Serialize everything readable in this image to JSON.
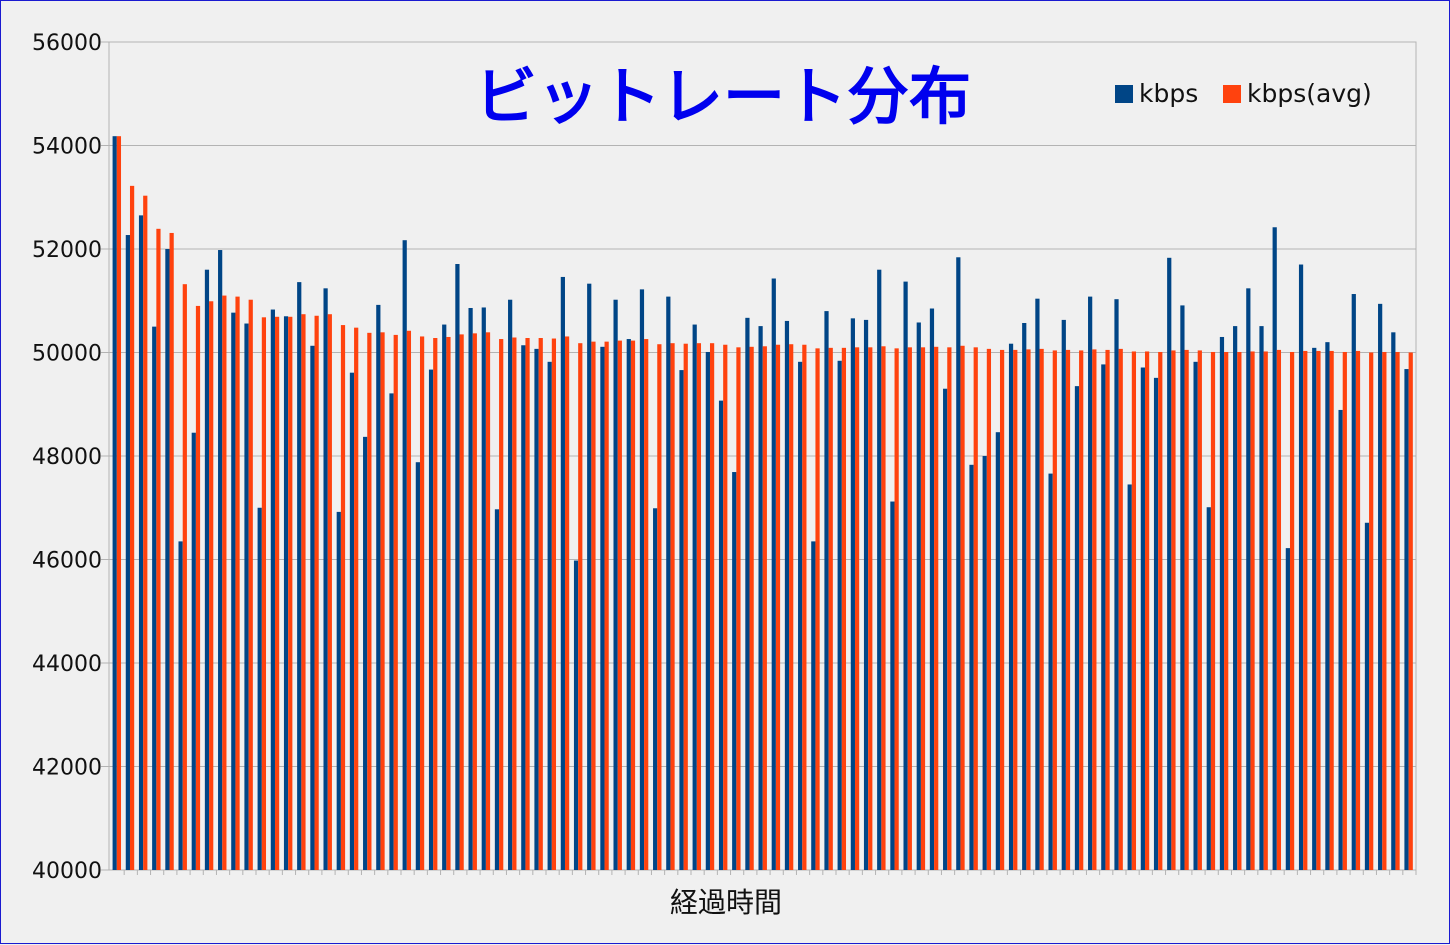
{
  "chart_data": {
    "type": "bar",
    "title": "ビットレート分布",
    "xlabel": "経過時間",
    "ylabel": "",
    "ylim": [
      40000,
      56000
    ],
    "yticks": [
      "56000",
      "54000",
      "52000",
      "50000",
      "48000",
      "46000",
      "44000",
      "42000",
      "40000"
    ],
    "grid": true,
    "legend_position": "top-right",
    "series": [
      {
        "name": "kbps",
        "color": "#004586",
        "values": [
          54180,
          52270,
          52650,
          50500,
          52000,
          46350,
          48450,
          51600,
          51980,
          50770,
          50560,
          47000,
          50830,
          50700,
          51360,
          50130,
          51240,
          46920,
          49610,
          48370,
          50920,
          49210,
          52170,
          47880,
          49670,
          50540,
          51710,
          50860,
          50870,
          46970,
          51020,
          50140,
          50070,
          49820,
          51460,
          45980,
          51330,
          50110,
          51020,
          50260,
          51220,
          46990,
          51080,
          49660,
          50540,
          50010,
          49070,
          47690,
          50670,
          50510,
          51430,
          50610,
          49820,
          46350,
          50800,
          49840,
          50660,
          50630,
          51600,
          47120,
          51370,
          50580,
          50850,
          49300,
          51840,
          47830,
          48000,
          48460,
          50170,
          50570,
          51040,
          47660,
          50630,
          49350,
          51080,
          49770,
          51030,
          47450,
          49710,
          49510,
          51830,
          50910,
          49820,
          47010,
          50300,
          50510,
          51240,
          50510,
          52420,
          46220,
          51700,
          50090,
          50200,
          48890,
          51130,
          46710,
          50940,
          50390,
          49680
        ]
      },
      {
        "name": "kbps(avg)",
        "color": "#ff420e",
        "values": [
          54180,
          53220,
          53030,
          52390,
          52310,
          51320,
          50900,
          50990,
          51100,
          51080,
          51020,
          50680,
          50690,
          50690,
          50740,
          50710,
          50740,
          50530,
          50480,
          50380,
          50390,
          50340,
          50420,
          50310,
          50280,
          50300,
          50350,
          50370,
          50390,
          50260,
          50290,
          50280,
          50280,
          50270,
          50310,
          50180,
          50210,
          50210,
          50230,
          50230,
          50260,
          50160,
          50180,
          50170,
          50180,
          50180,
          50150,
          50100,
          50110,
          50120,
          50150,
          50160,
          50150,
          50080,
          50090,
          50090,
          50100,
          50100,
          50120,
          50080,
          50100,
          50100,
          50110,
          50100,
          50130,
          50100,
          50070,
          50050,
          50050,
          50060,
          50070,
          50040,
          50050,
          50040,
          50060,
          50050,
          50070,
          50020,
          50020,
          50010,
          50040,
          50050,
          50040,
          50010,
          50010,
          50010,
          50020,
          50020,
          50050,
          50010,
          50030,
          50030,
          50030,
          50010,
          50030,
          50000,
          50010,
          50010,
          50000
        ]
      }
    ]
  }
}
